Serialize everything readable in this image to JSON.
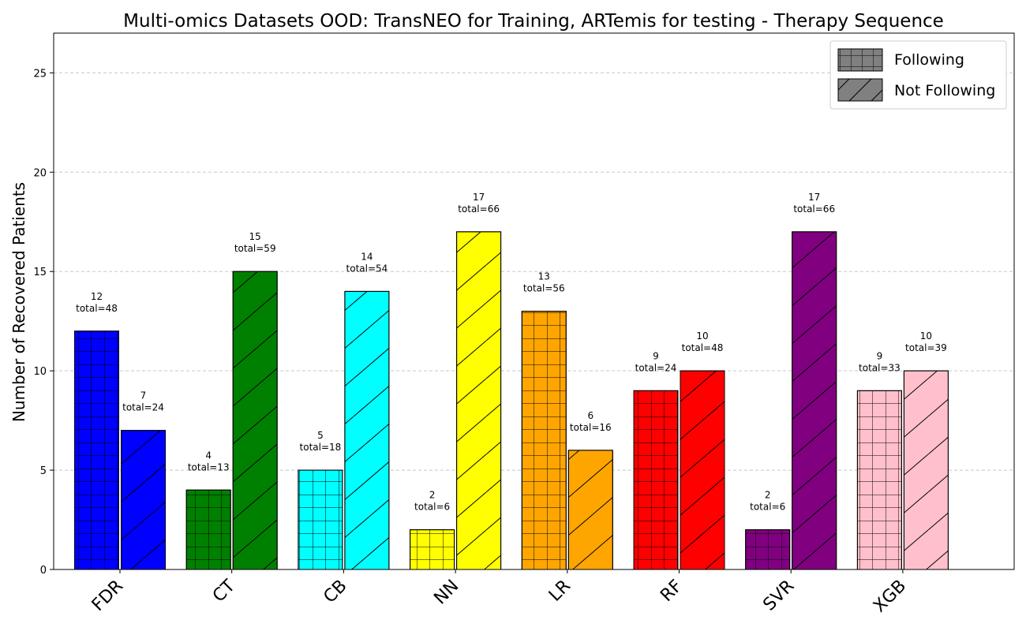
{
  "chart_data": {
    "type": "bar",
    "title": "Multi-omics Datasets OOD: TransNEO for Training, ARTemis for testing - Therapy Sequence",
    "xlabel": "",
    "ylabel": "Number of Recovered Patients",
    "ylim": [
      0,
      27
    ],
    "yticks": [
      0,
      5,
      10,
      15,
      20,
      25
    ],
    "grid": "y-dashed",
    "legend_position": "top-right",
    "categories": [
      "FDR",
      "CT",
      "CB",
      "NN",
      "LR",
      "RF",
      "SVR",
      "XGB"
    ],
    "category_colors": [
      "#0000ff",
      "#008000",
      "#00ffff",
      "#ffff00",
      "#ffa500",
      "#ff0000",
      "#800080",
      "#ffc0cb"
    ],
    "series": [
      {
        "name": "Following",
        "hatch": "grid",
        "values": [
          12,
          4,
          5,
          2,
          13,
          9,
          2,
          9
        ],
        "totals": [
          48,
          13,
          18,
          6,
          56,
          24,
          6,
          33
        ]
      },
      {
        "name": "Not Following",
        "hatch": "diagonal",
        "values": [
          7,
          15,
          14,
          17,
          6,
          10,
          17,
          10
        ],
        "totals": [
          24,
          59,
          54,
          66,
          16,
          48,
          66,
          39
        ]
      }
    ],
    "legend_swatch_color": "#808080"
  }
}
